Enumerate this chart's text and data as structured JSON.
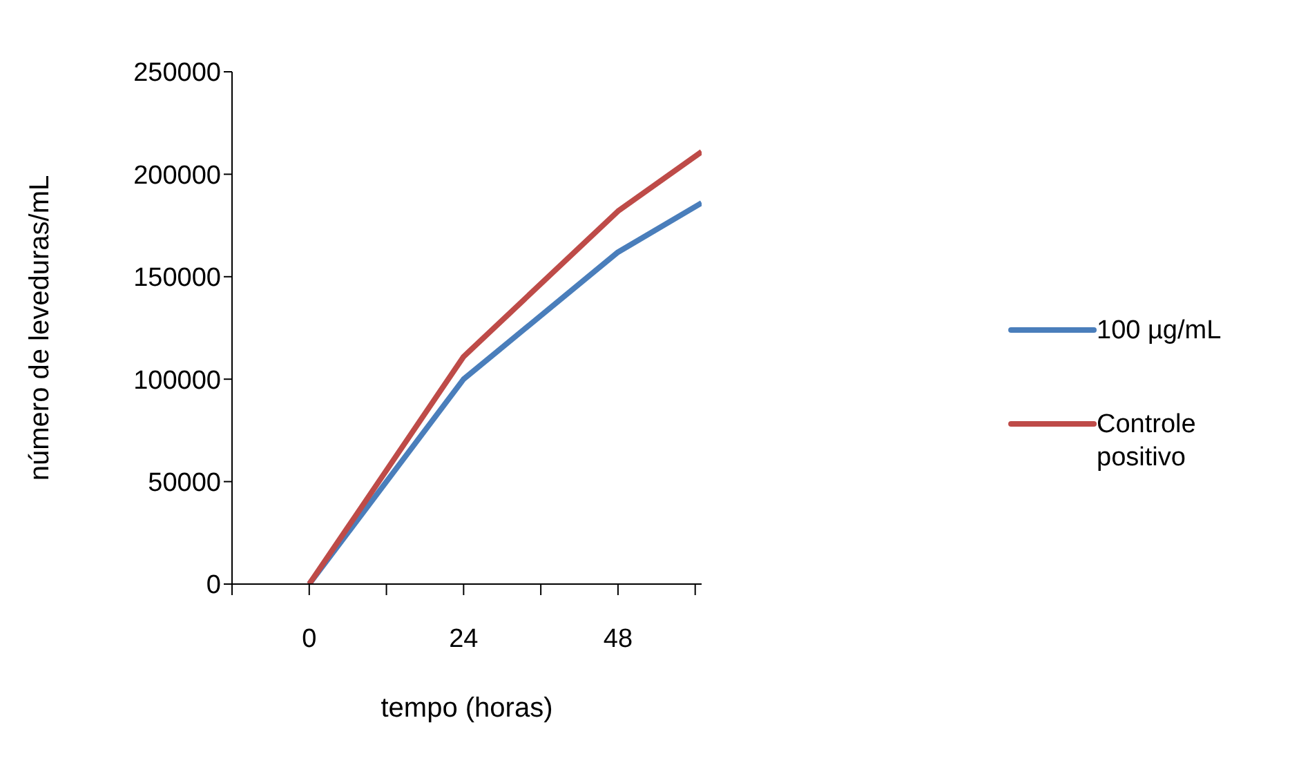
{
  "chart_data": {
    "type": "line",
    "xlabel": "tempo (horas)",
    "ylabel": "número de leveduras/mL",
    "x": [
      0,
      24,
      48,
      61
    ],
    "series": [
      {
        "name": "100 µg/mL",
        "color": "#4a7ebb",
        "values": [
          0,
          100000,
          162000,
          186000
        ]
      },
      {
        "name": "Controle positivo",
        "color": "#be4b48",
        "values": [
          0,
          111000,
          182000,
          211000
        ]
      }
    ],
    "xlim": [
      -12,
      61
    ],
    "xticks": [
      {
        "value": -12,
        "label": null
      },
      0,
      {
        "value": 12,
        "label": null
      },
      24,
      {
        "value": 36,
        "label": null
      },
      48,
      {
        "value": 60,
        "label": null
      }
    ],
    "ylim": [
      0,
      250000
    ],
    "yticks": [
      0,
      50000,
      100000,
      150000,
      200000,
      250000
    ],
    "grid": false,
    "legend": "right",
    "marker": "none",
    "line_style": "solid"
  }
}
